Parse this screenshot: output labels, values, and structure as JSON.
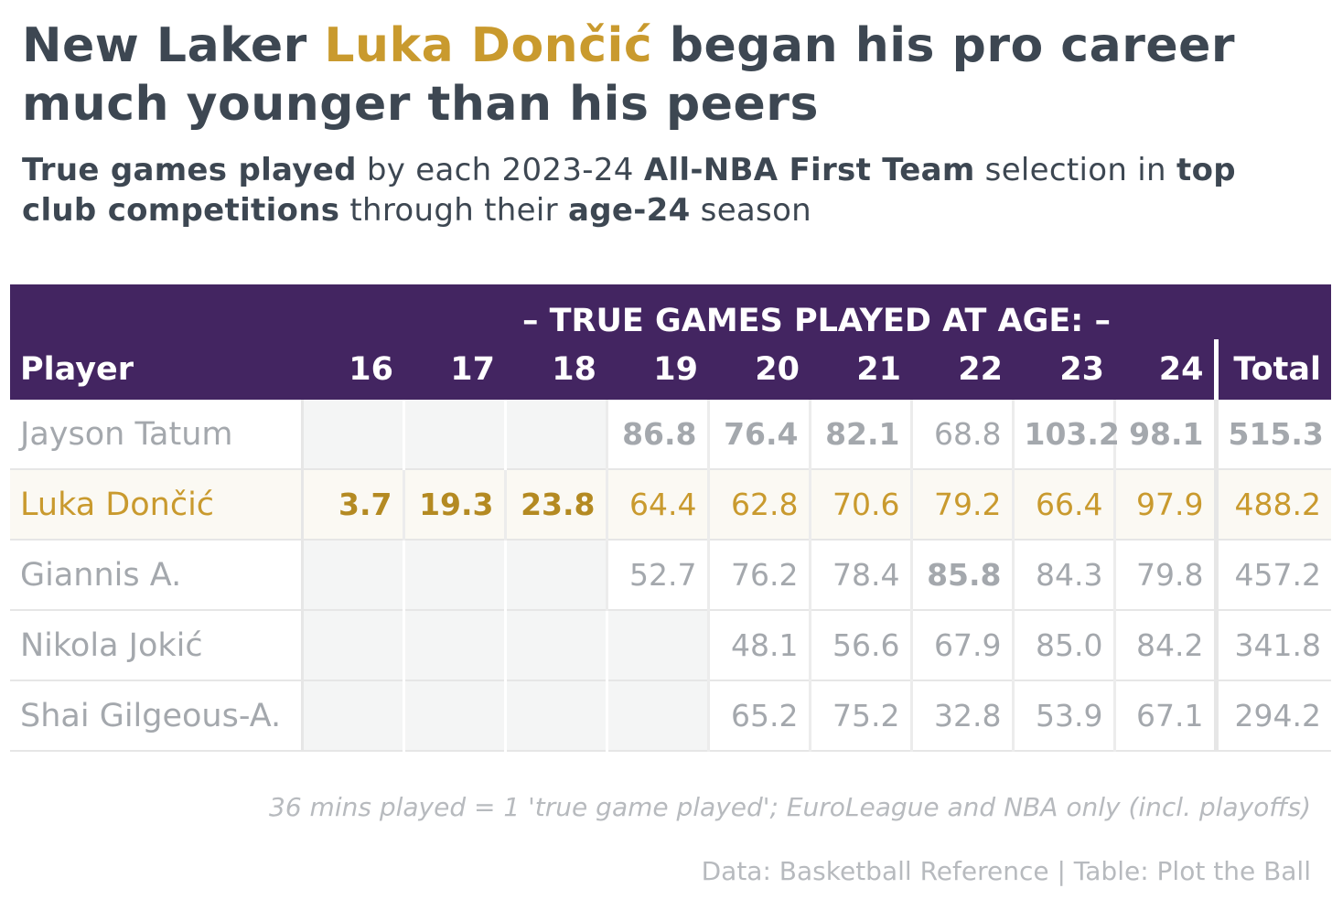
{
  "title": {
    "part1": "New Laker ",
    "highlight": "Luka Dončić",
    "part2": " began his pro career much younger than his peers"
  },
  "subtitle": {
    "b1": "True games played",
    "t1": " by each 2023-24 ",
    "b2": "All-NBA First Team",
    "t2": " selection in ",
    "b3": "top club competitions",
    "t3": " through their ",
    "b4": "age-24",
    "t4": " season"
  },
  "colors": {
    "header_bg": "#432561",
    "highlight": "#c99a2e",
    "text": "#3d4752",
    "muted": "#a4a8ad"
  },
  "chart_data": {
    "type": "table",
    "banner": "– TRUE GAMES PLAYED AT AGE: –",
    "columns": [
      "Player",
      "16",
      "17",
      "18",
      "19",
      "20",
      "21",
      "22",
      "23",
      "24",
      "Total"
    ],
    "rows": [
      {
        "player": "Jayson Tatum",
        "highlight": false,
        "values": [
          null,
          null,
          null,
          "86.8",
          "76.4",
          "82.1",
          "68.8",
          "103.2",
          "98.1",
          "515.3"
        ],
        "bold": [
          false,
          false,
          false,
          true,
          true,
          true,
          false,
          true,
          true,
          true
        ]
      },
      {
        "player": "Luka Dončić",
        "highlight": true,
        "values": [
          "3.7",
          "19.3",
          "23.8",
          "64.4",
          "62.8",
          "70.6",
          "79.2",
          "66.4",
          "97.9",
          "488.2"
        ],
        "bold": [
          true,
          true,
          true,
          false,
          false,
          false,
          false,
          false,
          false,
          false
        ]
      },
      {
        "player": "Giannis A.",
        "highlight": false,
        "values": [
          null,
          null,
          null,
          "52.7",
          "76.2",
          "78.4",
          "85.8",
          "84.3",
          "79.8",
          "457.2"
        ],
        "bold": [
          false,
          false,
          false,
          false,
          false,
          false,
          true,
          false,
          false,
          false
        ]
      },
      {
        "player": "Nikola Jokić",
        "highlight": false,
        "values": [
          null,
          null,
          null,
          null,
          "48.1",
          "56.6",
          "67.9",
          "85.0",
          "84.2",
          "341.8"
        ],
        "bold": [
          false,
          false,
          false,
          false,
          false,
          false,
          false,
          false,
          false,
          false
        ]
      },
      {
        "player": "Shai Gilgeous-A.",
        "highlight": false,
        "values": [
          null,
          null,
          null,
          null,
          "65.2",
          "75.2",
          "32.8",
          "53.9",
          "67.1",
          "294.2"
        ],
        "bold": [
          false,
          false,
          false,
          false,
          false,
          false,
          false,
          false,
          false,
          false
        ]
      }
    ]
  },
  "footer": {
    "note": "36 mins played = 1 'true game played'; EuroLeague and NBA only (incl. playoffs)",
    "credit": "Data: Basketball Reference | Table: Plot the Ball"
  }
}
